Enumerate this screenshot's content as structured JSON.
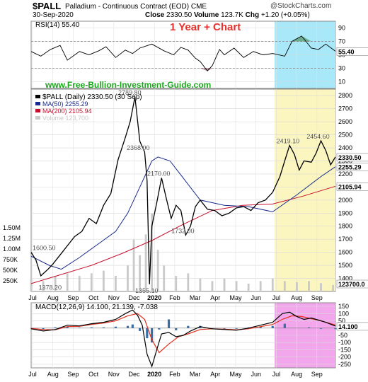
{
  "header": {
    "symbol": "$PALL",
    "name": "Palladium - Continuous Contract (EOD)",
    "exchange": "CME",
    "brand": "@StockCharts.com",
    "date": "30-Sep-2020",
    "close_label": "Close",
    "close": "2330.50",
    "volume_label": "Volume",
    "volume": "123.7K",
    "chg_label": "Chg",
    "chg": "+1.20 (+0.05%)"
  },
  "annotation": "1 Year + Chart",
  "site": "www.Free-Bullion-Investment-Guide.com",
  "colors": {
    "price": "#000000",
    "ma50": "#1a2a8c",
    "ma200": "#c8102e",
    "volume": "#c9c9c9",
    "rsi_overbought": "#3a7a3a",
    "rsi_oversold": "#7a2a4a",
    "macd_line": "#000000",
    "macd_signal": "#e03020",
    "macd_hist": "#3a6ea5",
    "highlight_rsi": "#a8e8f8",
    "highlight_price": "#fbf5c0",
    "highlight_macd": "#f2a6ec"
  },
  "chart_data": [
    {
      "type": "line",
      "panel": "rsi",
      "title": "RSI(14) 55.40",
      "ylim": [
        0,
        100
      ],
      "yticks": [
        10,
        30,
        50,
        70,
        90
      ],
      "reference_lines": [
        70,
        30
      ],
      "last": "55.40",
      "series": [
        {
          "name": "RSI(14)",
          "x": [
            0,
            8,
            16,
            24,
            30,
            40,
            48,
            56,
            62,
            70,
            78,
            84,
            90,
            100,
            110,
            118,
            124,
            130,
            136,
            140,
            146,
            150,
            156,
            160,
            168,
            176,
            184,
            192,
            200,
            210,
            216,
            224,
            232,
            238,
            244,
            252
          ],
          "values": [
            55,
            48,
            58,
            64,
            42,
            55,
            50,
            56,
            62,
            46,
            57,
            52,
            60,
            66,
            56,
            50,
            61,
            57,
            45,
            40,
            26,
            34,
            58,
            50,
            60,
            46,
            55,
            50,
            52,
            48,
            70,
            78,
            60,
            58,
            66,
            55.4
          ]
        }
      ]
    },
    {
      "type": "line",
      "panel": "price",
      "title": "$PALL (Daily) 2330.50 (30 Sep)",
      "ylim": [
        1300,
        2850
      ],
      "yticks": [
        1400,
        1500,
        1600,
        1700,
        1800,
        1900,
        2000,
        2100,
        2200,
        2300,
        2400,
        2500,
        2600,
        2700,
        2800
      ],
      "x_labels": [
        "Jul",
        "Aug",
        "Sep",
        "Oct",
        "Nov",
        "Dec",
        "2020",
        "Feb",
        "Mar",
        "Apr",
        "May",
        "Jun",
        "Jul",
        "Aug",
        "Sep"
      ],
      "last_price": "2330.50",
      "last_ma50": "2255.29",
      "last_ma200": "2105.94",
      "last_volume": "123700.0",
      "volume_ticks": [
        "1.50M",
        "1.25M",
        "1.00M",
        "750K",
        "500K",
        "250K"
      ],
      "annotations": [
        {
          "x": 0,
          "value": 1600.5,
          "label": "1600.50"
        },
        {
          "x": 5,
          "value": 1378.2,
          "label": "1378.20"
        },
        {
          "x": 84,
          "value": 2789.8,
          "label": "2789.80"
        },
        {
          "x": 91,
          "value": 2368.0,
          "label": "2368.00"
        },
        {
          "x": 98,
          "value": 1355.1,
          "label": "1355.10"
        },
        {
          "x": 108,
          "value": 2170.0,
          "label": "2170.00"
        },
        {
          "x": 128,
          "value": 1732.0,
          "label": "1732.00"
        },
        {
          "x": 215,
          "value": 2419.1,
          "label": "2419.10"
        },
        {
          "x": 240,
          "value": 2454.6,
          "label": "2454.60"
        }
      ],
      "series": [
        {
          "name": "MA(50)",
          "x": [
            0,
            15,
            25,
            40,
            55,
            70,
            80,
            90,
            100,
            105,
            115,
            125,
            140,
            160,
            180,
            200,
            220,
            240,
            252
          ],
          "values": [
            1570,
            1500,
            1470,
            1560,
            1660,
            1760,
            1900,
            2100,
            2300,
            2330,
            2300,
            2180,
            2000,
            1960,
            1950,
            1910,
            2040,
            2180,
            2255.29
          ]
        },
        {
          "name": "MA(200)",
          "x": [
            0,
            25,
            50,
            75,
            100,
            125,
            150,
            175,
            200,
            225,
            252
          ],
          "values": [
            1360,
            1430,
            1500,
            1590,
            1690,
            1810,
            1920,
            1960,
            1970,
            2030,
            2105.94
          ]
        },
        {
          "name": "$PALL",
          "x": [
            0,
            4,
            8,
            14,
            18,
            24,
            30,
            36,
            42,
            48,
            54,
            60,
            66,
            72,
            78,
            82,
            86,
            90,
            94,
            96,
            98,
            100,
            104,
            108,
            112,
            116,
            120,
            124,
            128,
            132,
            136,
            140,
            146,
            152,
            158,
            164,
            170,
            176,
            182,
            188,
            194,
            200,
            206,
            210,
            214,
            218,
            222,
            226,
            232,
            236,
            240,
            244,
            248,
            252
          ],
          "values": [
            1600.5,
            1540,
            1420,
            1470,
            1510,
            1580,
            1650,
            1720,
            1760,
            1860,
            1820,
            1960,
            2050,
            2310,
            2480,
            2600,
            2789.8,
            2450,
            2368,
            2150,
            1355.1,
            1800,
            1980,
            2170,
            2010,
            1860,
            1960,
            1920,
            1732,
            1800,
            1950,
            2000,
            1930,
            1920,
            1880,
            1900,
            1940,
            1950,
            1920,
            1980,
            2000,
            2060,
            2180,
            2300,
            2419.1,
            2350,
            2230,
            2300,
            2290,
            2360,
            2454.6,
            2380,
            2270,
            2330.5
          ]
        },
        {
          "name": "Volume",
          "x": [
            0,
            10,
            20,
            30,
            40,
            50,
            60,
            70,
            80,
            85,
            90,
            95,
            100,
            105,
            110,
            120,
            130,
            140,
            150,
            160,
            170,
            180,
            190,
            200,
            210,
            220,
            230,
            240,
            250
          ],
          "values": [
            250000,
            200000,
            300000,
            350000,
            300000,
            350000,
            400000,
            300000,
            500000,
            1000000,
            700000,
            1100000,
            1500000,
            800000,
            500000,
            300000,
            350000,
            250000,
            200000,
            250000,
            200000,
            150000,
            200000,
            250000,
            200000,
            180000,
            200000,
            160000,
            123700
          ]
        }
      ]
    },
    {
      "type": "line",
      "panel": "macd",
      "title": "MACD(12,26,9) 14.100, 21.139, -7.038",
      "ylim": [
        -275,
        175
      ],
      "yticks": [
        150,
        100,
        50,
        -50,
        -100,
        -150,
        -200,
        -250
      ],
      "x_labels": [
        "Jul",
        "Aug",
        "Sep",
        "Oct",
        "Nov",
        "Dec",
        "2020",
        "Feb",
        "Mar",
        "Apr",
        "May",
        "Jun",
        "Jul",
        "Aug",
        "Sep"
      ],
      "last": "14.100",
      "series": [
        {
          "name": "MACD",
          "x": [
            0,
            10,
            20,
            30,
            40,
            50,
            60,
            70,
            78,
            84,
            88,
            92,
            96,
            100,
            104,
            108,
            114,
            120,
            126,
            132,
            140,
            150,
            160,
            170,
            180,
            190,
            200,
            208,
            214,
            220,
            226,
            232,
            238,
            244,
            252
          ],
          "values": [
            -5,
            -20,
            -10,
            20,
            15,
            30,
            40,
            60,
            100,
            125,
            90,
            20,
            -180,
            -265,
            -150,
            -40,
            -30,
            -60,
            -50,
            -20,
            10,
            -5,
            -10,
            -15,
            0,
            20,
            40,
            100,
            110,
            80,
            60,
            70,
            55,
            40,
            14.1
          ]
        },
        {
          "name": "Signal",
          "x": [
            0,
            10,
            20,
            30,
            40,
            50,
            60,
            70,
            80,
            88,
            94,
            100,
            106,
            114,
            122,
            130,
            140,
            150,
            160,
            170,
            180,
            190,
            200,
            208,
            216,
            224,
            232,
            240,
            252
          ],
          "values": [
            -2,
            -10,
            -12,
            10,
            12,
            25,
            35,
            50,
            85,
            100,
            60,
            -80,
            -170,
            -110,
            -60,
            -40,
            -10,
            -5,
            -8,
            -12,
            -5,
            10,
            25,
            60,
            85,
            80,
            65,
            50,
            21.139
          ]
        },
        {
          "name": "Histogram",
          "x": [
            0,
            10,
            20,
            30,
            40,
            50,
            60,
            70,
            80,
            84,
            90,
            96,
            100,
            106,
            114,
            120,
            130,
            140,
            150,
            160,
            170,
            180,
            190,
            200,
            210,
            220,
            230,
            240,
            252
          ],
          "values": [
            -3,
            -8,
            5,
            10,
            3,
            5,
            5,
            10,
            15,
            25,
            -20,
            -70,
            -100,
            -10,
            60,
            -15,
            15,
            15,
            -5,
            -5,
            -5,
            5,
            10,
            15,
            30,
            0,
            5,
            -5,
            -7.038
          ]
        }
      ]
    }
  ]
}
